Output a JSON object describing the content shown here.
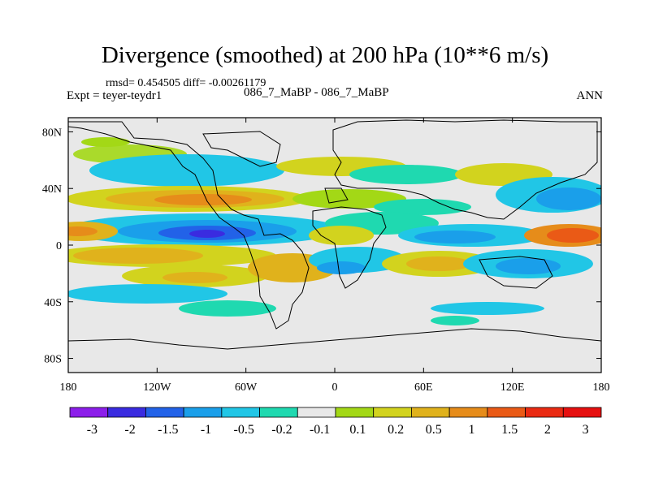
{
  "chart_data": {
    "type": "heatmap",
    "title": "Divergence (smoothed) at 200 hPa (10**6 m/s)",
    "stats": "rmsd= 0.454505 diff= -0.00261179",
    "experiment": "Expt = teyer-teydr1",
    "case": "086_7_MaBP - 086_7_MaBP",
    "season": "ANN",
    "xlim": [
      -180,
      180
    ],
    "ylim": [
      -90,
      90
    ],
    "x_ticks": [
      {
        "value": -180,
        "label": "180"
      },
      {
        "value": -120,
        "label": "120W"
      },
      {
        "value": -60,
        "label": "60W"
      },
      {
        "value": 0,
        "label": "0"
      },
      {
        "value": 60,
        "label": "60E"
      },
      {
        "value": 120,
        "label": "120E"
      },
      {
        "value": 180,
        "label": "180"
      }
    ],
    "y_ticks": [
      {
        "value": 80,
        "label": "80N"
      },
      {
        "value": 40,
        "label": "40N"
      },
      {
        "value": 0,
        "label": "0"
      },
      {
        "value": -40,
        "label": "40S"
      },
      {
        "value": -80,
        "label": "80S"
      }
    ],
    "colorbar": {
      "colors": [
        "#8c1eea",
        "#3a2be0",
        "#2262e8",
        "#1a9fea",
        "#21c6e6",
        "#1fd9b0",
        "#e8e8e8",
        "#a3d816",
        "#d2d31e",
        "#e0b21c",
        "#e68c1a",
        "#ea5a16",
        "#ea2a12",
        "#e61010"
      ],
      "labels": [
        "-3",
        "-2",
        "-1.5",
        "-1",
        "-0.5",
        "-0.2",
        "-0.1",
        "0.1",
        "0.2",
        "0.5",
        "1",
        "1.5",
        "2",
        "3"
      ]
    }
  }
}
